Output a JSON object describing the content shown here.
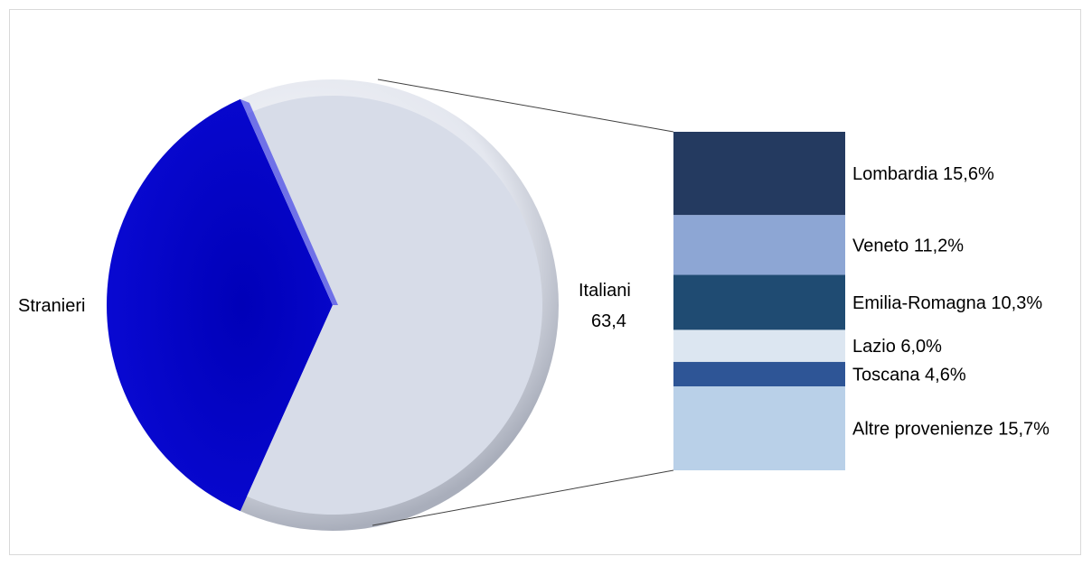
{
  "chart_data": {
    "type": "bar-of-pie",
    "pie": {
      "slices": [
        {
          "label": "Stranieri",
          "value": 36.6,
          "color": "#0b0bcc"
        },
        {
          "label": "Italiani",
          "value_label": "63,4",
          "value": 63.4,
          "color": "#d7dce8"
        }
      ]
    },
    "bar": {
      "segments": [
        {
          "label": "Lombardia 15,6%",
          "value": 15.6,
          "color": "#243a60"
        },
        {
          "label": "Veneto 11,2%",
          "value": 11.2,
          "color": "#8da6d4"
        },
        {
          "label": "Emilia-Romagna 10,3%",
          "value": 10.3,
          "color": "#1f4b72"
        },
        {
          "label": "Lazio 6,0%",
          "value": 6.0,
          "color": "#dce6f1"
        },
        {
          "label": "Toscana 4,6%",
          "value": 4.6,
          "color": "#2e5596"
        },
        {
          "label": "Altre provenienze 15,7%",
          "value": 15.7,
          "color": "#b9d0e8"
        }
      ]
    }
  }
}
